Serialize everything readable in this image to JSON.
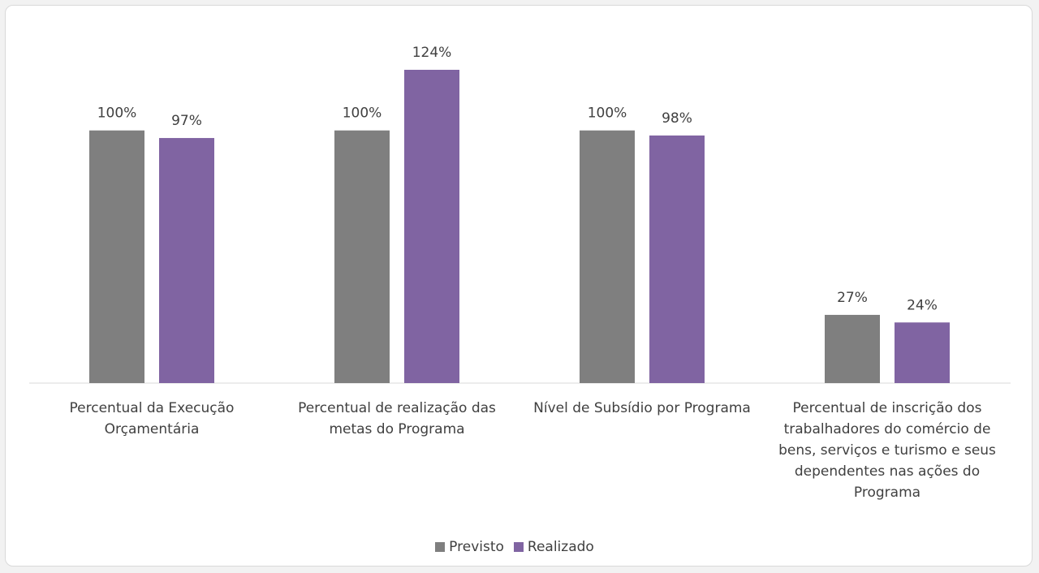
{
  "chart_data": {
    "type": "bar",
    "categories": [
      "Percentual da Execução Orçamentária",
      "Percentual de realização das metas do Programa",
      "Nível de Subsídio por Programa",
      "Percentual de inscrição dos trabalhadores do comércio de bens, serviços e turismo e seus dependentes nas ações do Programa"
    ],
    "series": [
      {
        "name": "Previsto",
        "values": [
          100,
          100,
          100,
          27
        ],
        "labels": [
          "100%",
          "100%",
          "100%",
          "27%"
        ],
        "color": "#7f7f7f"
      },
      {
        "name": "Realizado",
        "values": [
          97,
          124,
          98,
          24
        ],
        "labels": [
          "97%",
          "124%",
          "98%",
          "24%"
        ],
        "color": "#8064a2"
      }
    ],
    "ylim": [
      0,
      124
    ],
    "grid": false,
    "legend_position": "bottom"
  }
}
